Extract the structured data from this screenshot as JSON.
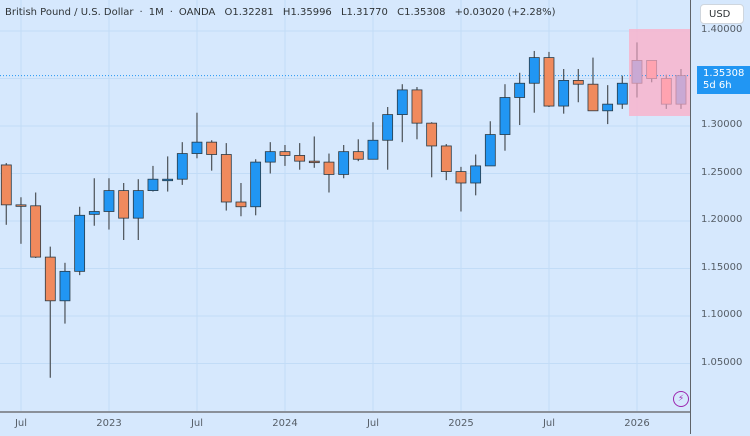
{
  "header": {
    "symbol": "British Pound / U.S. Dollar",
    "interval": "1M",
    "source": "OANDA",
    "open": "O1.32281",
    "high": "H1.35996",
    "low": "L1.31770",
    "close": "C1.35308",
    "change": "+0.03020 (+2.28%)"
  },
  "price_axis": {
    "currency": "USD",
    "last_price": "1.35308",
    "countdown": "5d 6h",
    "ticks": [
      "1.40000",
      "1.30000",
      "1.25000",
      "1.20000",
      "1.15000",
      "1.10000",
      "1.05000"
    ]
  },
  "time_axis": {
    "ticks": [
      "Jul",
      "2023",
      "Jul",
      "2024",
      "Jul",
      "2025",
      "Jul",
      "2026"
    ]
  },
  "colors": {
    "up": "#2196f3",
    "down": "#f08a5d",
    "background": "#d6e8fd",
    "highlight": "#f8b4cc",
    "grid": "#c2dcf7"
  },
  "chart_data": {
    "type": "candlestick",
    "title": "British Pound / U.S. Dollar · 1M · OANDA",
    "xlabel": "",
    "ylabel": "USD",
    "ylim": [
      1.0,
      1.41
    ],
    "legend_position": "top-left",
    "grid": true,
    "x": [
      "2022-06",
      "2022-07",
      "2022-08",
      "2022-09",
      "2022-10",
      "2022-11",
      "2022-12",
      "2023-01",
      "2023-02",
      "2023-03",
      "2023-04",
      "2023-05",
      "2023-06",
      "2023-07",
      "2023-08",
      "2023-09",
      "2023-10",
      "2023-11",
      "2023-12",
      "2024-01",
      "2024-02",
      "2024-03",
      "2024-04",
      "2024-05",
      "2024-06",
      "2024-07",
      "2024-08",
      "2024-09",
      "2024-10",
      "2024-11",
      "2024-12",
      "2025-01",
      "2025-02",
      "2025-03",
      "2025-04",
      "2025-05",
      "2025-06",
      "2025-07",
      "2025-08",
      "2025-09",
      "2025-10",
      "2025-11",
      "2025-12",
      "2026-01",
      "2026-02",
      "2026-03",
      "2026-04"
    ],
    "open": [
      1.259,
      1.217,
      1.216,
      1.162,
      1.116,
      1.147,
      1.207,
      1.21,
      1.232,
      1.203,
      1.232,
      1.244,
      1.244,
      1.271,
      1.283,
      1.27,
      1.22,
      1.215,
      1.262,
      1.273,
      1.269,
      1.263,
      1.262,
      1.249,
      1.273,
      1.265,
      1.285,
      1.312,
      1.338,
      1.303,
      1.279,
      1.252,
      1.24,
      1.258,
      1.291,
      1.33,
      1.345,
      1.372,
      1.321,
      1.348,
      1.344,
      1.316,
      1.323,
      1.345,
      1.369,
      1.35,
      1.323
    ],
    "high": [
      1.261,
      1.225,
      1.23,
      1.173,
      1.156,
      1.215,
      1.245,
      1.245,
      1.24,
      1.244,
      1.258,
      1.268,
      1.283,
      1.314,
      1.285,
      1.282,
      1.24,
      1.265,
      1.283,
      1.28,
      1.282,
      1.289,
      1.271,
      1.28,
      1.286,
      1.304,
      1.32,
      1.344,
      1.341,
      1.304,
      1.281,
      1.257,
      1.27,
      1.305,
      1.344,
      1.356,
      1.379,
      1.378,
      1.36,
      1.36,
      1.372,
      1.343,
      1.353,
      1.388,
      1.368,
      1.354,
      1.36
    ],
    "low": [
      1.196,
      1.176,
      1.161,
      1.035,
      1.092,
      1.143,
      1.195,
      1.191,
      1.18,
      1.18,
      1.231,
      1.231,
      1.238,
      1.266,
      1.253,
      1.211,
      1.205,
      1.206,
      1.25,
      1.258,
      1.254,
      1.256,
      1.23,
      1.245,
      1.263,
      1.266,
      1.254,
      1.283,
      1.286,
      1.246,
      1.243,
      1.21,
      1.227,
      1.258,
      1.274,
      1.301,
      1.314,
      1.32,
      1.313,
      1.325,
      1.317,
      1.302,
      1.318,
      1.33,
      1.346,
      1.318,
      1.318
    ],
    "close": [
      1.217,
      1.216,
      1.162,
      1.116,
      1.147,
      1.206,
      1.21,
      1.232,
      1.203,
      1.232,
      1.244,
      1.244,
      1.271,
      1.283,
      1.27,
      1.22,
      1.215,
      1.262,
      1.273,
      1.269,
      1.263,
      1.262,
      1.249,
      1.273,
      1.265,
      1.285,
      1.312,
      1.338,
      1.303,
      1.279,
      1.252,
      1.24,
      1.258,
      1.291,
      1.33,
      1.345,
      1.372,
      1.321,
      1.348,
      1.344,
      1.316,
      1.323,
      1.345,
      1.369,
      1.35,
      1.323,
      1.353
    ],
    "highlighted_range": {
      "from": "2026-01",
      "to": "2026-04"
    },
    "last_price": 1.35308
  }
}
